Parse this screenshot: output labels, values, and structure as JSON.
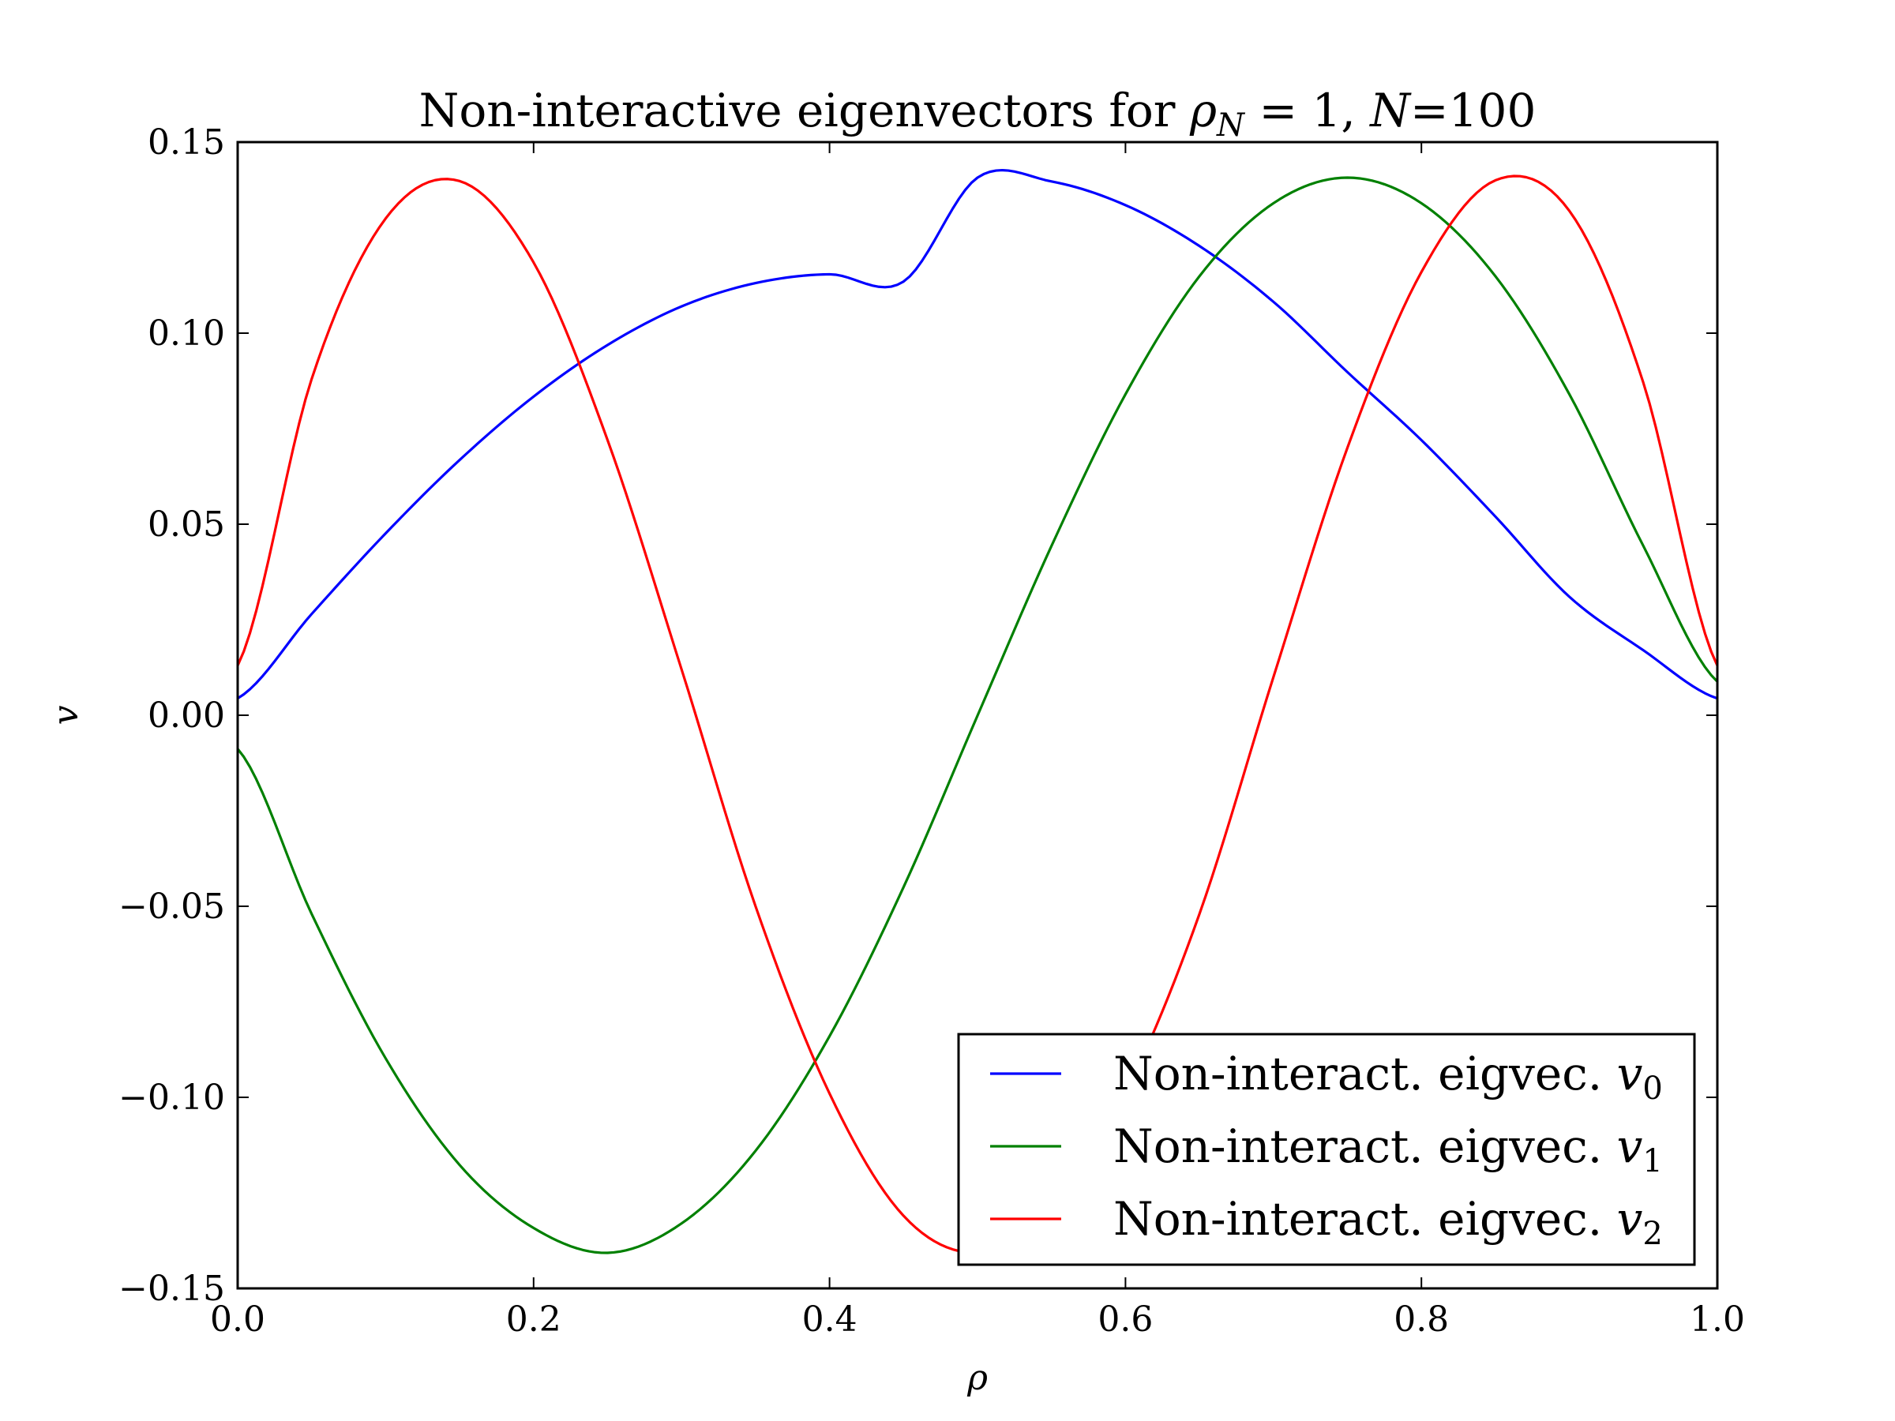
{
  "chart_data": {
    "type": "line",
    "title": "Non-interactive eigenvectors for ρN = 1, N=100",
    "title_parts": {
      "prefix": "Non-interactive eigenvectors for ",
      "rho": "ρ",
      "rho_sub": "N",
      "mid": " = 1, ",
      "n": "N",
      "suffix": "=100"
    },
    "xlabel": "ρ",
    "ylabel": "v",
    "xlim": [
      0.0,
      1.0
    ],
    "ylim": [
      -0.15,
      0.15
    ],
    "xticks": [
      "0.0",
      "0.2",
      "0.4",
      "0.6",
      "0.8",
      "1.0"
    ],
    "yticks": [
      "0.15",
      "0.10",
      "0.05",
      "0.00",
      "−0.05",
      "−0.10",
      "−0.15"
    ],
    "grid": false,
    "legend_position": "lower right",
    "x": [
      0.0,
      0.05,
      0.1,
      0.15,
      0.2,
      0.25,
      0.3,
      0.35,
      0.4,
      0.45,
      0.5,
      0.55,
      0.6,
      0.65,
      0.7,
      0.75,
      0.8,
      0.85,
      0.9,
      0.95,
      1.0
    ],
    "series": [
      {
        "name": "Non-interact. eigvec.",
        "symbol": "v",
        "subscript": "0",
        "color": "#0000ff",
        "values": [
          0.0044,
          0.0265,
          0.0476,
          0.0668,
          0.0834,
          0.0969,
          0.107,
          0.1131,
          0.1154,
          0.1135,
          0.1407,
          0.1397,
          0.1335,
          0.1228,
          0.1082,
          0.0898,
          0.072,
          0.052,
          0.031,
          0.017,
          0.0044
        ]
      },
      {
        "name": "Non-interact. eigvec.",
        "symbol": "v",
        "subscript": "1",
        "color": "#008000",
        "values": [
          -0.0088,
          -0.052,
          -0.0898,
          -0.1177,
          -0.1342,
          -0.1407,
          -0.133,
          -0.114,
          -0.084,
          -0.045,
          -0.0001,
          0.0443,
          0.084,
          0.1149,
          0.134,
          0.1407,
          0.134,
          0.1149,
          0.084,
          0.0443,
          0.0088
        ]
      },
      {
        "name": "Non-interact. eigvec.",
        "symbol": "v",
        "subscript": "2",
        "color": "#ff0000",
        "values": [
          0.013,
          0.088,
          0.13,
          0.1398,
          0.1185,
          0.072,
          0.012,
          -0.05,
          -0.099,
          -0.131,
          -0.1407,
          -0.13,
          -0.099,
          -0.052,
          0.01,
          0.07,
          0.116,
          0.14,
          0.132,
          0.087,
          0.013
        ]
      }
    ]
  }
}
